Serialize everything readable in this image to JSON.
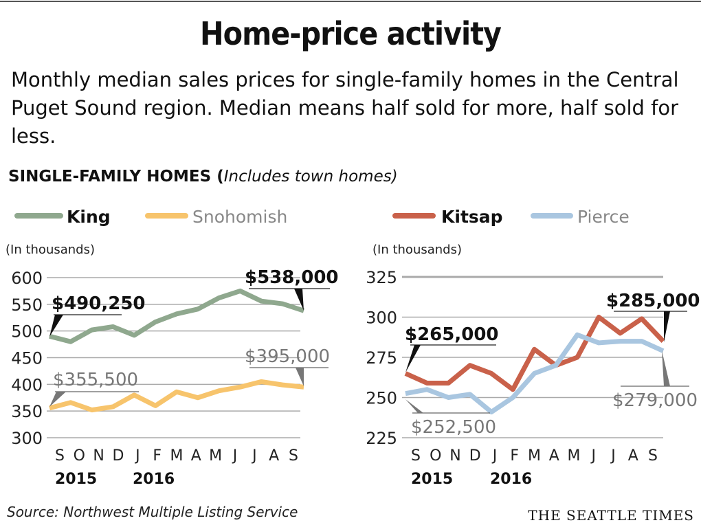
{
  "title": "Home-price activity",
  "subtitle": "Monthly median sales prices for single-family homes in the Central Puget Sound region. Median means half sold for more, half sold for less.",
  "section_label": "SINGLE-FAMILY HOMES (",
  "section_note": "Includes town homes)",
  "source": "Source: Northwest Multiple Listing Service",
  "brand": "THE SEATTLE TIMES",
  "chart_data": [
    {
      "type": "line",
      "ylabel": "(In thousands)",
      "ylim": [
        300,
        600
      ],
      "yticks": [
        600,
        550,
        500,
        450,
        400,
        350,
        300
      ],
      "categories": [
        "S",
        "O",
        "N",
        "D",
        "J",
        "F",
        "M",
        "A",
        "M",
        "J",
        "J",
        "A",
        "S"
      ],
      "year_labels": [
        "2015",
        "2016"
      ],
      "grid": true,
      "legend": "top",
      "series": [
        {
          "name": "King",
          "color": "#8fa88e",
          "values": [
            490.25,
            480,
            502,
            508,
            492,
            517,
            532,
            541,
            562,
            575,
            556,
            551,
            538
          ],
          "callouts": {
            "start": "$490,250",
            "end": "$538,000"
          }
        },
        {
          "name": "Snohomish",
          "color": "#f7c46c",
          "values": [
            355.5,
            366,
            352,
            358,
            380,
            360,
            386,
            375,
            388,
            395,
            405,
            399,
            395
          ],
          "callouts": {
            "start": "$355,500",
            "end": "$395,000"
          }
        }
      ]
    },
    {
      "type": "line",
      "ylabel": "(In thousands)",
      "ylim": [
        225,
        325
      ],
      "yticks": [
        325,
        300,
        275,
        250,
        225
      ],
      "categories": [
        "S",
        "O",
        "N",
        "D",
        "J",
        "F",
        "M",
        "A",
        "M",
        "J",
        "J",
        "A",
        "S"
      ],
      "year_labels": [
        "2015",
        "2016"
      ],
      "grid": true,
      "legend": "top",
      "series": [
        {
          "name": "Kitsap",
          "color": "#c9614a",
          "values": [
            265,
            259,
            259,
            270,
            265,
            255,
            280,
            270,
            275,
            300,
            290,
            299,
            285
          ],
          "callouts": {
            "start": "$265,000",
            "end": "$285,000"
          }
        },
        {
          "name": "Pierce",
          "color": "#a9c6e0",
          "values": [
            252.5,
            255,
            250,
            252,
            241,
            250,
            265,
            270,
            289,
            284,
            285,
            285,
            279
          ],
          "callouts": {
            "start": "$252,500",
            "end": "$279,000"
          }
        }
      ]
    }
  ]
}
